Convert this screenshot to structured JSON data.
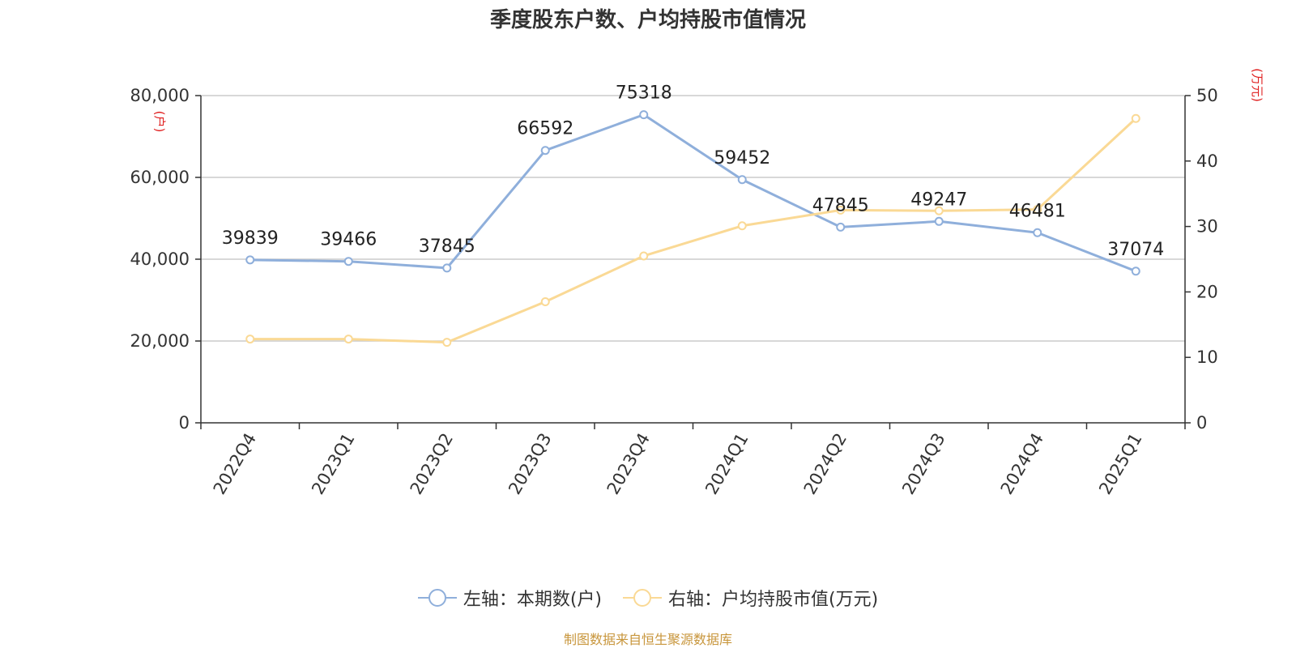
{
  "chart_data": {
    "type": "line",
    "title": "季度股东户数、户均持股市值情况",
    "categories": [
      "2022Q4",
      "2023Q1",
      "2023Q2",
      "2023Q3",
      "2023Q4",
      "2024Q1",
      "2024Q2",
      "2024Q3",
      "2024Q4",
      "2025Q1"
    ],
    "y_left": {
      "unit": "(户)",
      "ylim": [
        0,
        80000
      ],
      "ticks": [
        "0",
        "20,000",
        "40,000",
        "60,000",
        "80,000"
      ],
      "tick_values": [
        0,
        20000,
        40000,
        60000,
        80000
      ]
    },
    "y_right": {
      "unit": "(万元)",
      "ylim": [
        0,
        50
      ],
      "ticks": [
        "0",
        "10",
        "20",
        "30",
        "40",
        "50"
      ],
      "tick_values": [
        0,
        10,
        20,
        30,
        40,
        50
      ]
    },
    "series": [
      {
        "name": "左轴：本期数(户)",
        "axis": "left",
        "color": "#8fafdb",
        "values": [
          39839,
          39466,
          37845,
          66592,
          75318,
          59452,
          47845,
          49247,
          46481,
          37074
        ],
        "labels": [
          "39839",
          "39466",
          "37845",
          "66592",
          "75318",
          "59452",
          "47845",
          "49247",
          "46481",
          "37074"
        ]
      },
      {
        "name": "右轴：户均持股市值(万元)",
        "axis": "right",
        "color": "#fad995",
        "values": [
          12.8,
          12.8,
          12.3,
          18.5,
          25.5,
          30.1,
          32.5,
          32.4,
          32.6,
          46.5
        ]
      }
    ],
    "grid": true,
    "legend": "bottom-center"
  },
  "source_note": "制图数据来自恒生聚源数据库",
  "colors": {
    "axis_unit": "#e02020",
    "source_text": "#c8963c"
  }
}
